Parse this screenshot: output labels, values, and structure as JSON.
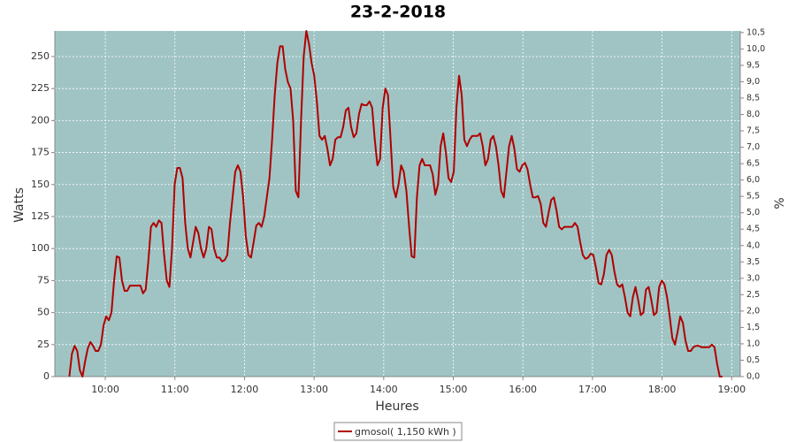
{
  "chart_data": {
    "type": "line",
    "title": "23-2-2018",
    "xlabel": "Heures",
    "ylabel": "Watts",
    "y2label": "%",
    "x": [
      569,
      571.27,
      573.54,
      575.81,
      578.08,
      580.35,
      582.62,
      584.89,
      587.16,
      589.43,
      591.7,
      593.97,
      596.24,
      598.51,
      600.78,
      603.05,
      605.32,
      607.59,
      609.86,
      612.13,
      614.4,
      616.67,
      618.94,
      621.21,
      623.48,
      625.75,
      628.02,
      630.29,
      632.56,
      634.83,
      637.1,
      639.37,
      641.64,
      643.91,
      646.18,
      648.45,
      650.72,
      652.99,
      655.26,
      657.53,
      659.8,
      662.07,
      664.34,
      666.61,
      668.88,
      671.15,
      673.42,
      675.69,
      677.96,
      680.23,
      682.5,
      684.77,
      687.04,
      689.31,
      691.58,
      693.85,
      696.12,
      698.39,
      700.66,
      702.93,
      705.2,
      707.47,
      709.74,
      712.01,
      714.28,
      716.55,
      718.82,
      721.09,
      723.36,
      725.63,
      727.9,
      730.17,
      732.44,
      734.71,
      736.98,
      739.25,
      741.52,
      743.79,
      746.06,
      748.33,
      750.6,
      752.87,
      755.14,
      757.41,
      759.68,
      761.95,
      764.22,
      766.49,
      768.76,
      771.03,
      773.3,
      775.57,
      777.84,
      780.11,
      782.38,
      784.65,
      786.92,
      789.19,
      791.46,
      793.73,
      796,
      798.27,
      800.54,
      802.81,
      805.08,
      807.35,
      809.62,
      811.89,
      814.16,
      816.43,
      818.7,
      820.97,
      823.24,
      825.51,
      827.78,
      830.05,
      832.32,
      834.59,
      836.86,
      839.13,
      841.4,
      843.67,
      845.94,
      848.21,
      850.48,
      852.75,
      855.02,
      857.29,
      859.56,
      861.83,
      864.1,
      866.37,
      868.64,
      870.91,
      873.18,
      875.45,
      877.72,
      879.99,
      882.26,
      884.53,
      886.8,
      889.07,
      891.34,
      893.61,
      895.88,
      898.15,
      900.42,
      902.69,
      904.96,
      907.23,
      909.5,
      911.77,
      914.04,
      916.31,
      918.58,
      920.85,
      923.12,
      925.39,
      927.66,
      929.93,
      932.2,
      934.47,
      936.74,
      939.01,
      941.28,
      943.55,
      945.82,
      948.09,
      950.36,
      952.63,
      954.9,
      957.17,
      959.44,
      961.71,
      963.98,
      966.25,
      968.52,
      970.79,
      973.06,
      975.33,
      977.6,
      979.87,
      982.14,
      984.41,
      986.68,
      988.95,
      991.22,
      993.49,
      995.76,
      998.03,
      1000.3,
      1002.57,
      1004.84,
      1007.11,
      1009.38,
      1011.65,
      1013.92,
      1016.19,
      1018.46,
      1020.73,
      1023,
      1025.27,
      1027.54,
      1029.81,
      1032.08,
      1034.35,
      1036.62,
      1038.89,
      1041.16,
      1043.43,
      1045.7,
      1047.97,
      1050.24,
      1052.51,
      1054.78,
      1057.05,
      1059.32,
      1061.59,
      1063.86,
      1066.13,
      1068.4,
      1070.67,
      1072.94,
      1075.21,
      1077.48,
      1079.75,
      1082.02,
      1084.29,
      1086.56,
      1088.83,
      1091.1,
      1093.37,
      1095.64,
      1097.91,
      1100.18,
      1102.45,
      1104.72,
      1106.99,
      1109.26,
      1111.53,
      1113.8,
      1116.07,
      1118.34,
      1120.61,
      1122.88,
      1125.15,
      1127.42,
      1129.69,
      1131.96
    ],
    "series": [
      {
        "name": "gmosol( 1,150 kWh )",
        "color": "#b00000",
        "values": [
          0,
          18,
          24,
          20,
          5,
          0,
          12,
          22,
          27,
          24,
          20,
          20,
          25,
          40,
          47,
          44,
          50,
          75,
          94,
          93,
          75,
          67,
          67,
          71,
          71,
          71,
          71,
          71,
          65,
          68,
          90,
          117,
          120,
          117,
          122,
          120,
          95,
          75,
          70,
          100,
          150,
          163,
          163,
          155,
          120,
          100,
          93,
          105,
          117,
          112,
          100,
          93,
          100,
          117,
          115,
          100,
          93,
          93,
          90,
          91,
          95,
          120,
          140,
          160,
          165,
          160,
          140,
          110,
          95,
          93,
          105,
          118,
          120,
          117,
          125,
          140,
          155,
          185,
          220,
          245,
          258,
          258,
          240,
          230,
          225,
          200,
          145,
          140,
          200,
          250,
          270,
          260,
          245,
          235,
          215,
          188,
          185,
          188,
          178,
          165,
          170,
          185,
          187,
          187,
          195,
          208,
          210,
          195,
          187,
          190,
          205,
          213,
          212,
          212,
          215,
          210,
          185,
          165,
          170,
          210,
          225,
          220,
          185,
          148,
          140,
          150,
          165,
          160,
          145,
          118,
          94,
          93,
          140,
          165,
          170,
          165,
          165,
          165,
          158,
          142,
          150,
          180,
          190,
          175,
          155,
          152,
          160,
          210,
          235,
          220,
          185,
          180,
          185,
          188,
          188,
          188,
          190,
          180,
          165,
          170,
          185,
          188,
          180,
          165,
          145,
          140,
          160,
          180,
          188,
          178,
          162,
          160,
          165,
          167,
          162,
          150,
          140,
          140,
          141,
          135,
          120,
          117,
          128,
          138,
          140,
          130,
          117,
          115,
          117,
          117,
          117,
          117,
          120,
          117,
          105,
          95,
          92,
          93,
          96,
          95,
          85,
          73,
          72,
          80,
          95,
          99,
          95,
          82,
          72,
          70,
          72,
          62,
          50,
          47,
          62,
          70,
          60,
          48,
          50,
          68,
          70,
          60,
          48,
          50,
          70,
          75,
          72,
          62,
          47,
          30,
          25,
          35,
          47,
          42,
          28,
          20,
          20,
          23,
          24,
          24,
          23,
          23,
          23,
          23,
          25,
          23,
          10,
          0,
          0
        ]
      }
    ],
    "xlim": [
      556.5,
      1147.4
    ],
    "xticks": [
      {
        "value": 600,
        "label": "10:00"
      },
      {
        "value": 660,
        "label": "11:00"
      },
      {
        "value": 720,
        "label": "12:00"
      },
      {
        "value": 780,
        "label": "13:00"
      },
      {
        "value": 840,
        "label": "14:00"
      },
      {
        "value": 900,
        "label": "15:00"
      },
      {
        "value": 960,
        "label": "16:00"
      },
      {
        "value": 1020,
        "label": "17:00"
      },
      {
        "value": 1080,
        "label": "18:00"
      },
      {
        "value": 1140,
        "label": "19:00"
      }
    ],
    "ylim": [
      0,
      270
    ],
    "yticks": [
      0,
      25,
      50,
      75,
      100,
      125,
      150,
      175,
      200,
      225,
      250
    ],
    "y2lim": [
      0,
      10.55
    ],
    "y2ticks": [
      {
        "value": 0,
        "label": "0,0"
      },
      {
        "value": 0.5,
        "label": "0,5"
      },
      {
        "value": 1,
        "label": "1,0"
      },
      {
        "value": 1.5,
        "label": "1,5"
      },
      {
        "value": 2,
        "label": "2,0"
      },
      {
        "value": 2.5,
        "label": "2,5"
      },
      {
        "value": 3,
        "label": "3,0"
      },
      {
        "value": 3.5,
        "label": "3,5"
      },
      {
        "value": 4,
        "label": "4,0"
      },
      {
        "value": 4.5,
        "label": "4,5"
      },
      {
        "value": 5,
        "label": "5,0"
      },
      {
        "value": 5.5,
        "label": "5,5"
      },
      {
        "value": 6,
        "label": "6,0"
      },
      {
        "value": 6.5,
        "label": "6,5"
      },
      {
        "value": 7,
        "label": "7,0"
      },
      {
        "value": 7.5,
        "label": "7,5"
      },
      {
        "value": 8,
        "label": "8,0"
      },
      {
        "value": 8.5,
        "label": "8,5"
      },
      {
        "value": 9,
        "label": "9,0"
      },
      {
        "value": 9.5,
        "label": "9,5"
      },
      {
        "value": 10,
        "label": "10,0"
      },
      {
        "value": 10.5,
        "label": "10,5"
      }
    ],
    "grid": true,
    "plot_background": "#a0c4c4",
    "legend": "bottom"
  }
}
